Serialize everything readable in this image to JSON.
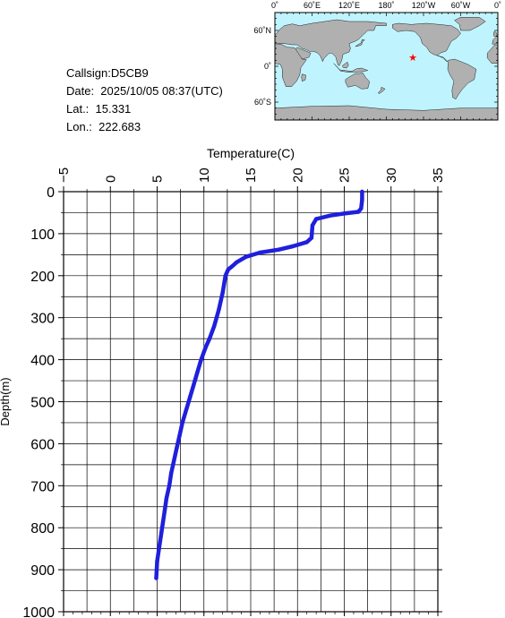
{
  "info": {
    "callsign": "Callsign:D5CB9",
    "date": "Date:  2025/10/05 08:37(UTC)",
    "lat": "Lat.:  15.331",
    "lon": "Lon.:  222.683"
  },
  "map": {
    "top_ticks": [
      "0˚",
      "60˚E",
      "120˚E",
      "180˚",
      "120˚W",
      "60˚W",
      "0˚"
    ],
    "left_ticks": [
      "60˚N",
      "0˚",
      "60˚S"
    ],
    "ocean_color": "#bff4ff",
    "land_color": "#b0b0b0",
    "marker": {
      "lon": 222.683,
      "lat": 15.331,
      "symbol": "★",
      "color": "#ff0000"
    }
  },
  "chart_data": {
    "type": "line",
    "xlabel": "Temperature(C)",
    "ylabel": "Depth(m)",
    "xlim": [
      -5,
      35
    ],
    "ylim": [
      1000,
      0
    ],
    "x_ticks": [
      -5,
      0,
      5,
      10,
      15,
      20,
      25,
      30,
      35
    ],
    "y_ticks": [
      0,
      100,
      200,
      300,
      400,
      500,
      600,
      700,
      800,
      900,
      1000
    ],
    "x_tick_labels": [
      "−5",
      "0",
      "5",
      "10",
      "15",
      "20",
      "25",
      "30",
      "35"
    ],
    "y_tick_labels": [
      "0",
      "100",
      "200",
      "300",
      "400",
      "500",
      "600",
      "700",
      "800",
      "900",
      "1000"
    ],
    "grid": true,
    "line_color": "#1f1fdd",
    "series": [
      {
        "temperature": [
          26.9,
          26.9,
          26.8,
          26.5,
          25.0,
          23.5,
          22.0,
          21.6,
          21.5,
          21.0,
          19.5,
          18.0,
          16.0,
          14.5,
          13.5,
          13.0,
          12.6,
          12.3,
          12.0,
          11.6,
          11.1,
          10.6,
          10.2,
          9.7,
          9.3,
          8.9,
          8.5,
          8.1,
          7.7,
          7.4,
          7.1,
          6.8,
          6.5,
          6.3,
          6.0,
          5.8,
          5.6,
          5.4,
          5.2,
          5.0,
          4.9
        ],
        "depth": [
          0,
          20,
          40,
          48,
          52,
          57,
          65,
          80,
          110,
          120,
          130,
          138,
          145,
          155,
          168,
          178,
          185,
          200,
          240,
          280,
          320,
          350,
          370,
          400,
          430,
          460,
          490,
          520,
          550,
          580,
          610,
          640,
          670,
          700,
          730,
          760,
          790,
          820,
          850,
          880,
          920
        ]
      }
    ]
  }
}
